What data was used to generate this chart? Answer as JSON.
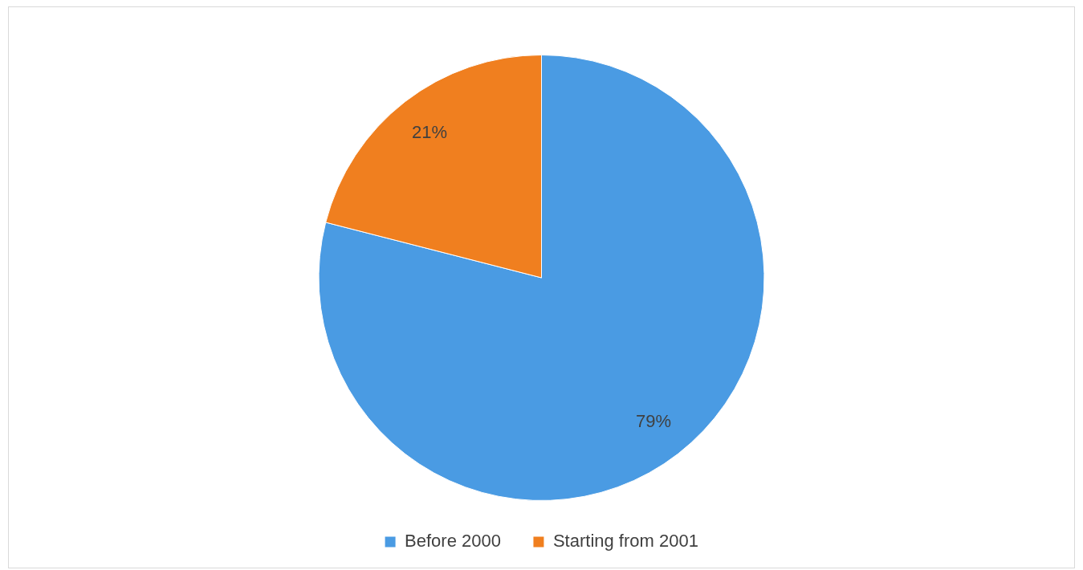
{
  "chart_data": {
    "type": "pie",
    "categories": [
      "Before 2000",
      "Starting from 2001"
    ],
    "values": [
      79,
      21
    ],
    "colors": [
      "#4a9be3",
      "#f07f1f"
    ],
    "value_labels": [
      "79%",
      "21%"
    ],
    "legend": "bottom"
  }
}
